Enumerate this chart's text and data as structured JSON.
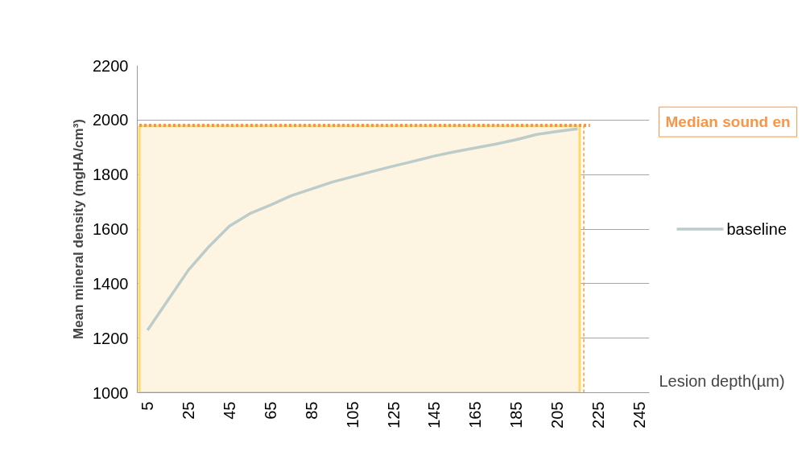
{
  "chart_data": {
    "type": "line",
    "xlabel": "Lesion depth(µm)",
    "ylabel": "Mean mineral density (mgHA/cm³)",
    "x": [
      5,
      15,
      25,
      35,
      45,
      55,
      65,
      75,
      85,
      95,
      105,
      115,
      125,
      135,
      145,
      155,
      165,
      175,
      185,
      195,
      205,
      215
    ],
    "series": [
      {
        "name": "baseline",
        "color": "#bccccb",
        "values": [
          1229,
          1340,
          1450,
          1536,
          1611,
          1657,
          1688,
          1722,
          1747,
          1772,
          1792,
          1812,
          1831,
          1849,
          1868,
          1884,
          1898,
          1912,
          1928,
          1947,
          1958,
          1968
        ]
      }
    ],
    "xlim": [
      0,
      250
    ],
    "xticks": [
      5,
      25,
      45,
      65,
      85,
      105,
      125,
      145,
      165,
      185,
      205,
      225,
      245
    ],
    "ylim": [
      1000,
      2200
    ],
    "yticks": [
      1000,
      1200,
      1400,
      1600,
      1800,
      2000,
      2200
    ],
    "ref_lines": [
      {
        "axis": "y",
        "value": 1980,
        "label": "Median sound en",
        "color": "#f79646",
        "line_style": "dotted"
      },
      {
        "axis": "x",
        "value": 218,
        "color": "#f79646",
        "line_style": "dashed"
      }
    ],
    "bands": [
      {
        "axis": "y",
        "from": 1000,
        "to": 1978,
        "color": "#fdf5e1"
      }
    ],
    "grid": "y",
    "legend": "right",
    "marker": "none",
    "line_style": "solid"
  }
}
